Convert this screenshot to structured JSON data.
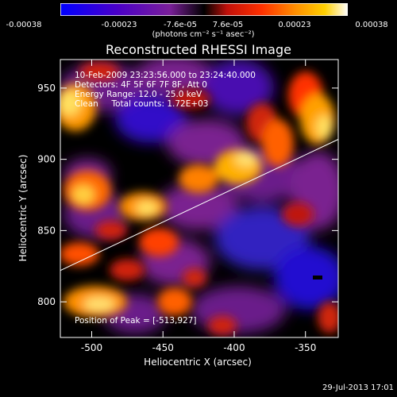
{
  "colorbar": {
    "tick_labels": [
      "-0.00038",
      "-0.00023",
      "-7.6e-05",
      "7.6e-05",
      "0.00023",
      "0.00038"
    ],
    "tick_values": [
      -0.00038,
      -0.00023,
      -7.6e-05,
      7.6e-05,
      0.00023,
      0.00038
    ],
    "range": [
      -0.00038,
      0.00038
    ],
    "unit_label": "(photons cm⁻² s⁻¹ asec⁻²)",
    "colors": [
      "#0000ff",
      "#4b00c8",
      "#7a1f9a",
      "#000000",
      "#c0100a",
      "#ff3000",
      "#ff9000",
      "#ffd000",
      "#ffffff"
    ]
  },
  "header": {
    "time_range": "10-Feb-2009 23:23:56.000 to 23:24:40.000",
    "detectors": "Detectors: 4F 5F 6F 7F 8F, Att 0",
    "energy_range": "Energy Range: 12.0 - 25.0 keV",
    "clean_counts": "Clean     Total counts: 1.72E+03"
  },
  "footer": {
    "peak": "Position of Peak = [-513,927]",
    "timestamp": "29-Jul-2013 17:01"
  },
  "chart_data": {
    "type": "heatmap",
    "title": "Reconstructed RHESSI Image",
    "xlabel": "Heliocentric X (arcsec)",
    "ylabel": "Heliocentric Y (arcsec)",
    "xlim": [
      -522,
      -327
    ],
    "ylim": [
      775,
      970
    ],
    "x_ticks": [
      -500,
      -450,
      -400,
      -350
    ],
    "y_ticks": [
      800,
      850,
      900,
      950
    ],
    "x_tick_labels": [
      "-500",
      "-450",
      "-400",
      "-350"
    ],
    "y_tick_labels": [
      "800",
      "850",
      "900",
      "950"
    ],
    "limb_line": [
      [
        -522,
        822
      ],
      [
        -327,
        914
      ]
    ],
    "peak_position": [
      -513,
      927
    ]
  }
}
